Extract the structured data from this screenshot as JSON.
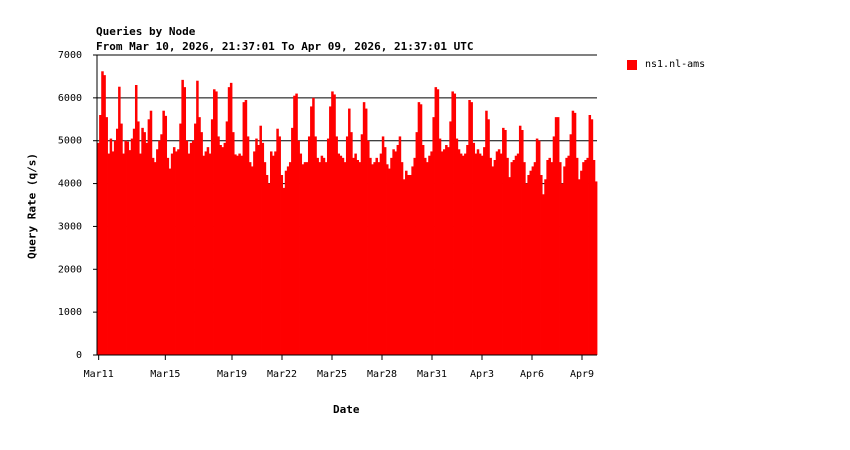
{
  "chart_data": {
    "type": "bar",
    "title": "Queries by Node",
    "subtitle": "From Mar 10, 2026, 21:37:01 To Apr 09, 2026, 21:37:01 UTC",
    "xlabel": "Date",
    "ylabel": "Query Rate (q/s)",
    "ylim": [
      0,
      7000
    ],
    "y_ticks": [
      0,
      1000,
      2000,
      3000,
      4000,
      5000,
      6000,
      7000
    ],
    "grid": "horizontal",
    "legend_position": "right",
    "x_range_days": [
      0,
      30
    ],
    "x_ticks": [
      {
        "label": "Mar11",
        "day": 0.1
      },
      {
        "label": "Mar15",
        "day": 4.1
      },
      {
        "label": "Mar19",
        "day": 8.1
      },
      {
        "label": "Mar22",
        "day": 11.1
      },
      {
        "label": "Mar25",
        "day": 14.1
      },
      {
        "label": "Mar28",
        "day": 17.1
      },
      {
        "label": "Mar31",
        "day": 20.1
      },
      {
        "label": "Apr3",
        "day": 23.1
      },
      {
        "label": "Apr6",
        "day": 26.1
      },
      {
        "label": "Apr9",
        "day": 29.1
      }
    ],
    "series": [
      {
        "name": "ns1.nl-ams",
        "color": "#ff0000",
        "values": [
          4950,
          5600,
          6620,
          6530,
          5550,
          4700,
          5050,
          4750,
          5000,
          5280,
          6260,
          5400,
          4700,
          5000,
          4980,
          4780,
          5050,
          5280,
          6300,
          5450,
          4700,
          5300,
          5200,
          4950,
          5500,
          5700,
          4600,
          4500,
          4800,
          5000,
          5150,
          5700,
          5580,
          4600,
          4350,
          4700,
          4850,
          4750,
          4800,
          5400,
          6420,
          6250,
          5000,
          4700,
          4950,
          5000,
          5400,
          6400,
          5550,
          5200,
          4650,
          4750,
          4850,
          4700,
          5500,
          6200,
          6150,
          5100,
          4900,
          4850,
          4950,
          5450,
          6250,
          6350,
          5200,
          4680,
          4650,
          4700,
          4650,
          5900,
          5950,
          5100,
          4500,
          4400,
          4750,
          5050,
          4900,
          5350,
          4950,
          4500,
          4200,
          4000,
          4750,
          4650,
          4750,
          5280,
          5100,
          4200,
          3900,
          4300,
          4400,
          4500,
          5300,
          6050,
          6100,
          5000,
          4700,
          4450,
          4500,
          4500,
          5100,
          5800,
          6000,
          5100,
          4600,
          4500,
          4650,
          4600,
          4500,
          5050,
          5800,
          6150,
          6080,
          5100,
          4700,
          4650,
          4600,
          4500,
          5100,
          5750,
          5200,
          4600,
          4700,
          4550,
          4500,
          5150,
          5900,
          5750,
          5000,
          4600,
          4450,
          4500,
          4600,
          4500,
          4700,
          5100,
          4850,
          4450,
          4350,
          4600,
          4800,
          4750,
          4900,
          5100,
          4500,
          4100,
          4300,
          4200,
          4200,
          4400,
          4600,
          5200,
          5900,
          5850,
          4900,
          4600,
          4500,
          4650,
          4750,
          5550,
          6250,
          6200,
          5050,
          4750,
          4800,
          4900,
          4850,
          5450,
          6150,
          6100,
          5050,
          4800,
          4700,
          4650,
          4700,
          4900,
          5950,
          5900,
          4950,
          4700,
          4800,
          4700,
          4650,
          4850,
          5700,
          5500,
          4600,
          4400,
          4550,
          4750,
          4800,
          4700,
          5300,
          5250,
          4600,
          4150,
          4500,
          4550,
          4650,
          4700,
          5350,
          5250,
          4500,
          4000,
          4200,
          4300,
          4400,
          4500,
          5050,
          5000,
          4200,
          3750,
          4100,
          4550,
          4600,
          4500,
          5100,
          5550,
          5550,
          4500,
          4000,
          4400,
          4600,
          4650,
          5150,
          5700,
          5650,
          4600,
          4100,
          4300,
          4500,
          4550,
          4600,
          5600,
          5500,
          4550,
          4050
        ]
      }
    ]
  }
}
